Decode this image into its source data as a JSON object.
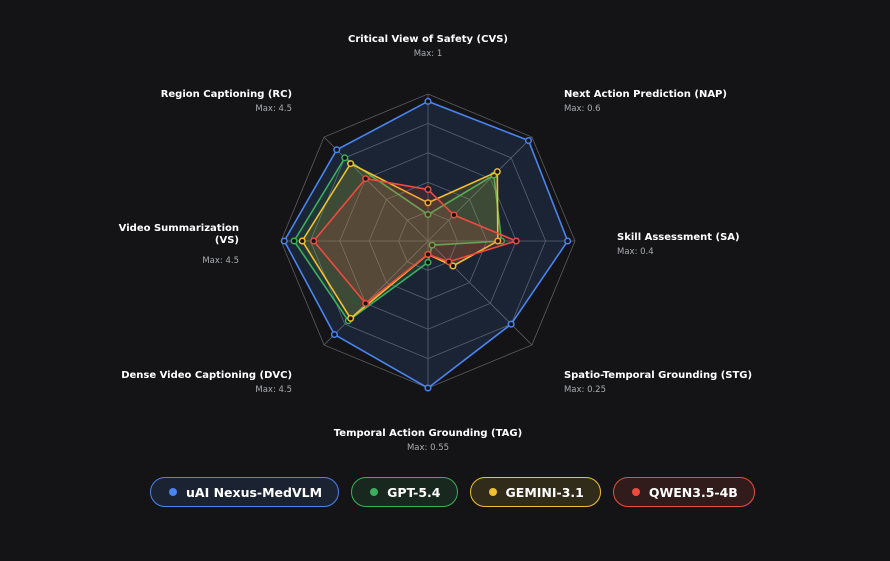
{
  "chart_data": {
    "type": "radar",
    "axes": [
      {
        "label": "Critical View of Safety (CVS)",
        "max_label": "Max: 1",
        "max": 1
      },
      {
        "label": "Next Action Prediction (NAP)",
        "max_label": "Max: 0.6",
        "max": 0.6
      },
      {
        "label": "Skill Assessment (SA)",
        "max_label": "Max: 0.4",
        "max": 0.4
      },
      {
        "label": "Spatio-Temporal Grounding (STG)",
        "max_label": "Max: 0.25",
        "max": 0.25
      },
      {
        "label": "Temporal Action Grounding (TAG)",
        "max_label": "Max: 0.55",
        "max": 0.55
      },
      {
        "label": "Dense Video Captioning (DVC)",
        "max_label": "Max: 4.5",
        "max": 4.5
      },
      {
        "label": "Video Summarization (VS)",
        "max_label": "Max: 4.5",
        "max": 4.5
      },
      {
        "label": "Region Captioning (RC)",
        "max_label": "Max: 4.5",
        "max": 4.5
      }
    ],
    "series": [
      {
        "name": "uAI Nexus-MedVLM",
        "color": "#4a84f0",
        "values": [
          0.95,
          0.58,
          0.38,
          0.2,
          0.55,
          4.05,
          4.4,
          3.95
        ]
      },
      {
        "name": "GPT-5.4",
        "color": "#3dae5c",
        "values": [
          0.18,
          0.38,
          0.2,
          0.01,
          0.08,
          3.45,
          4.1,
          3.6
        ]
      },
      {
        "name": "GEMINI-3.1",
        "color": "#f2c12e",
        "values": [
          0.26,
          0.4,
          0.19,
          0.06,
          0.05,
          3.35,
          3.85,
          3.35
        ]
      },
      {
        "name": "QWEN3.5-4B",
        "color": "#ef4a3f",
        "values": [
          0.35,
          0.15,
          0.24,
          0.05,
          0.05,
          2.7,
          3.5,
          2.7
        ]
      }
    ],
    "grid_levels": 5,
    "legend_position": "bottom"
  },
  "legend": {
    "items": [
      {
        "label": "uAI Nexus-MedVLM",
        "color": "#4a84f0"
      },
      {
        "label": "GPT-5.4",
        "color": "#3dae5c"
      },
      {
        "label": "GEMINI-3.1",
        "color": "#f2c12e"
      },
      {
        "label": "QWEN3.5-4B",
        "color": "#ef4a3f"
      }
    ]
  }
}
